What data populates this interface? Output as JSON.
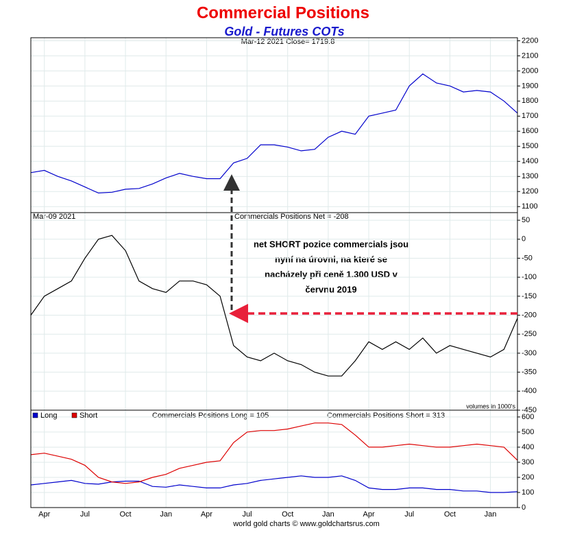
{
  "chart_data": [
    {
      "type": "line",
      "title": "Commercial Positions",
      "subtitle": "Gold - Futures COTs",
      "header": "Mar-12  2021   Close= 1719.8",
      "series": [
        {
          "name": "Gold",
          "color": "#0000cc",
          "values": [
            1325,
            1340,
            1300,
            1270,
            1230,
            1190,
            1195,
            1215,
            1220,
            1250,
            1290,
            1320,
            1300,
            1285,
            1285,
            1390,
            1420,
            1510,
            1510,
            1495,
            1470,
            1480,
            1560,
            1600,
            1580,
            1700,
            1720,
            1740,
            1900,
            1980,
            1920,
            1900,
            1860,
            1870,
            1860,
            1800,
            1720
          ]
        }
      ],
      "ylim": [
        1060,
        2220
      ],
      "yticks": [
        1100,
        1200,
        1300,
        1400,
        1500,
        1600,
        1700,
        1800,
        1900,
        2000,
        2100,
        2200
      ],
      "grid": true
    },
    {
      "type": "line",
      "header_left": "Mar-09  2021",
      "header": "Commercials Positions Net = -208",
      "annotation": [
        "net SHORT pozice commercials jsou",
        "nyní na úrovni, na které se",
        "nacházely při ceně 1.300 USD v",
        "červnu 2019"
      ],
      "units_note": "volumes in 1000's",
      "series": [
        {
          "name": "Net",
          "color": "#000000",
          "values": [
            -200,
            -150,
            -130,
            -110,
            -50,
            0,
            10,
            -30,
            -110,
            -130,
            -140,
            -110,
            -110,
            -120,
            -150,
            -280,
            -310,
            -320,
            -300,
            -320,
            -330,
            -350,
            -360,
            -360,
            -320,
            -270,
            -290,
            -270,
            -290,
            -260,
            -300,
            -280,
            -290,
            -300,
            -310,
            -290,
            -208
          ]
        }
      ],
      "ylim": [
        -450,
        70
      ],
      "yticks": [
        -450,
        -400,
        -350,
        -300,
        -250,
        -200,
        -150,
        -100,
        -50,
        0,
        50
      ],
      "grid": true
    },
    {
      "type": "line",
      "header_long": "Commercials Positions Long = 105",
      "header_short": "Commercials Positions Short = 313",
      "source": "world gold charts © www.goldchartsrus.com",
      "categories": [
        null,
        "Apr",
        null,
        null,
        "Jul",
        null,
        null,
        "Oct",
        null,
        null,
        "Jan",
        null,
        null,
        "Apr",
        null,
        null,
        "Jul",
        null,
        null,
        "Oct",
        null,
        null,
        "Jan",
        null,
        null,
        "Apr",
        null,
        null,
        "Jul",
        null,
        null,
        "Oct",
        null,
        null,
        "Jan",
        null,
        null
      ],
      "series": [
        {
          "name": "Long",
          "color": "#0000cc",
          "values": [
            150,
            160,
            170,
            180,
            160,
            155,
            170,
            175,
            175,
            140,
            135,
            150,
            140,
            130,
            130,
            150,
            160,
            180,
            190,
            200,
            210,
            200,
            200,
            210,
            180,
            130,
            120,
            120,
            130,
            130,
            120,
            120,
            110,
            110,
            100,
            100,
            105
          ]
        },
        {
          "name": "Short",
          "color": "#dd0000",
          "values": [
            350,
            360,
            340,
            320,
            280,
            200,
            170,
            160,
            170,
            200,
            220,
            260,
            280,
            300,
            310,
            430,
            500,
            510,
            510,
            520,
            540,
            560,
            560,
            550,
            480,
            400,
            400,
            410,
            420,
            410,
            400,
            400,
            410,
            420,
            410,
            400,
            313
          ]
        }
      ],
      "ylim": [
        0,
        645
      ],
      "yticks": [
        0,
        100,
        200,
        300,
        400,
        500,
        600
      ],
      "grid": true
    }
  ]
}
